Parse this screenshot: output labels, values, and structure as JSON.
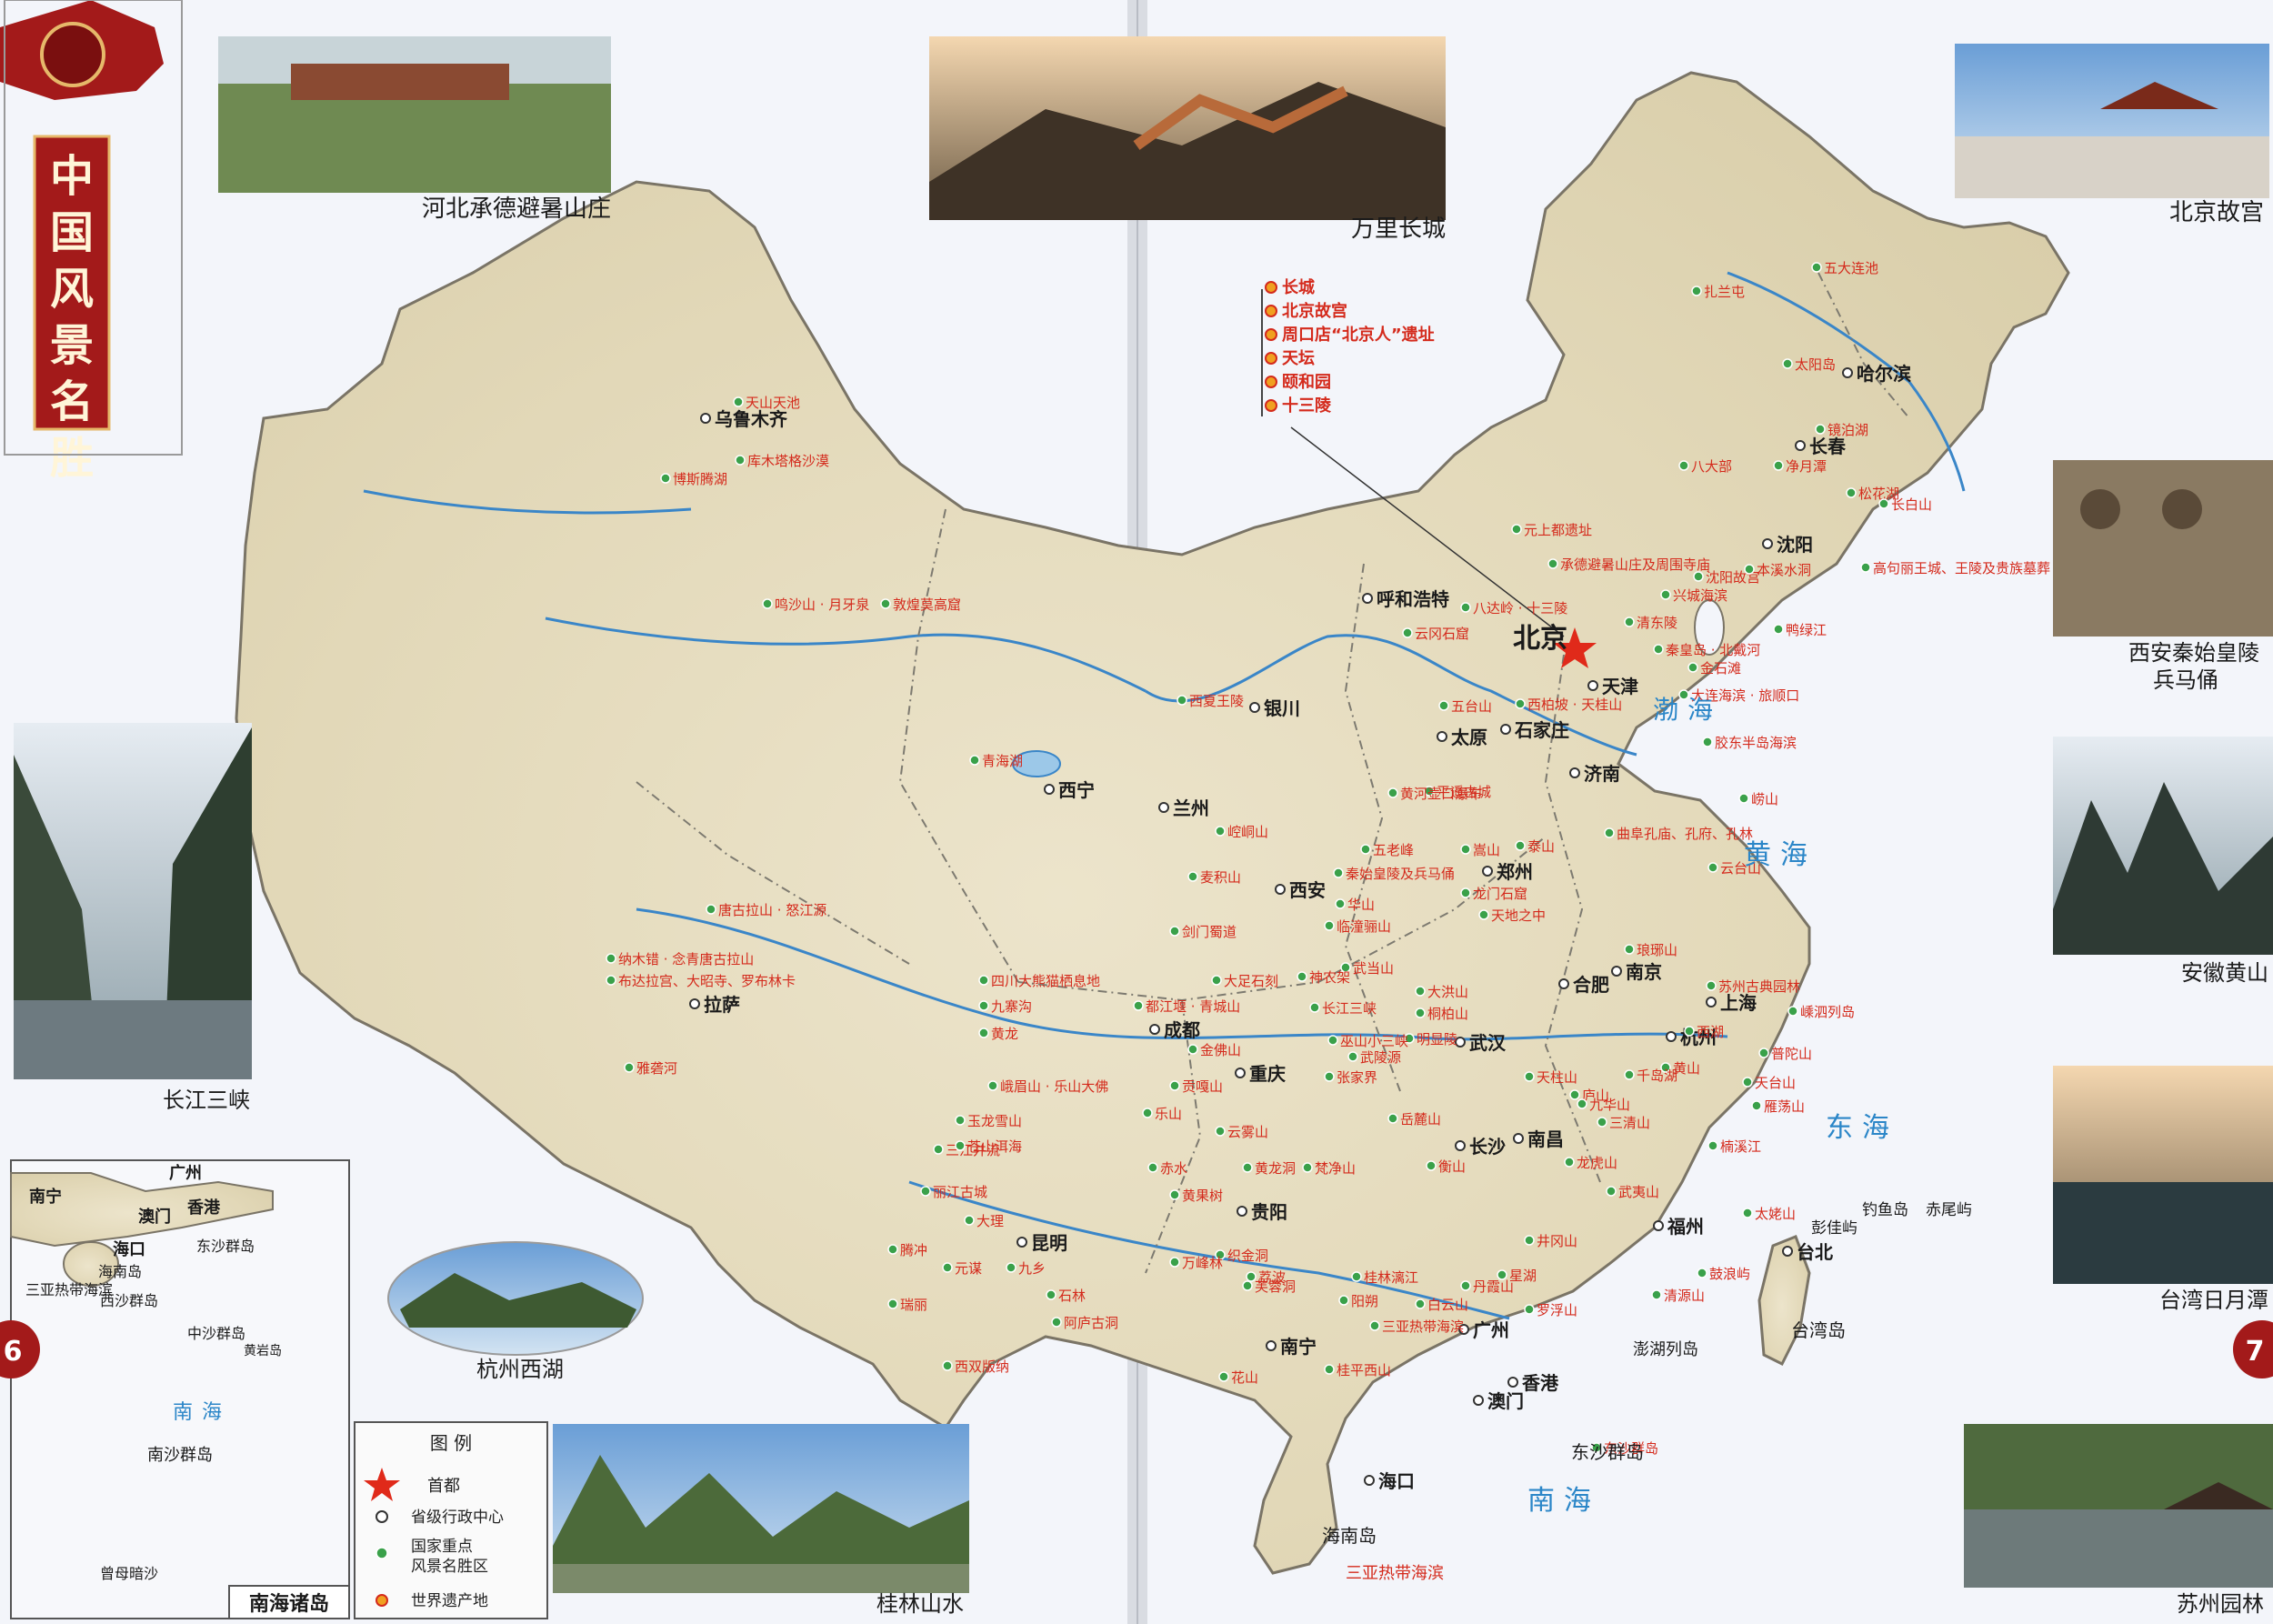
{
  "title": "中国风景名胜",
  "capital_name": "北京",
  "photos": {
    "chengde": "河北承德避暑山庄",
    "great_wall": "万里长城",
    "forbidden_city": "北京故宫",
    "terracotta_1": "西安秦始皇陵",
    "terracotta_2": "兵马俑",
    "huangshan": "安徽黄山",
    "sun_moon_lake": "台湾日月潭",
    "suzhou": "苏州园林",
    "guilin": "桂林山水",
    "hangzhou": "杭州西湖",
    "three_gorges": "长江三峡"
  },
  "beijing_list": [
    "长城",
    "北京故宫",
    "周口店“北京人”遗址",
    "天坛",
    "颐和园",
    "十三陵"
  ],
  "cities": {
    "urumqi": "乌鲁木齐",
    "lhasa": "拉萨",
    "xining": "西宁",
    "lanzhou": "兰州",
    "yinchuan": "银川",
    "hohhot": "呼和浩特",
    "harbin": "哈尔滨",
    "changchun": "长春",
    "shenyang": "沈阳",
    "tianjin": "天津",
    "shijiazhuang": "石家庄",
    "taiyuan": "太原",
    "jinan": "济南",
    "zhengzhou": "郑州",
    "xian": "西安",
    "chengdu": "成都",
    "chongqing": "重庆",
    "wuhan": "武汉",
    "hefei": "合肥",
    "nanjing": "南京",
    "shanghai": "上海",
    "hangzhou": "杭州",
    "nanchang": "南昌",
    "changsha": "长沙",
    "guiyang": "贵阳",
    "kunming": "昆明",
    "nanning": "南宁",
    "guangzhou": "广州",
    "fuzhou": "福州",
    "taipei": "台北",
    "macau": "澳门",
    "hongkong": "香港",
    "haikou": "海口"
  },
  "scenic": [
    "天山天池",
    "博斯腾湖",
    "库木塔格沙漠",
    "鸣沙山 · 月牙泉",
    "敦煌莫高窟",
    "青海湖",
    "唐古拉山 · 怒江源",
    "纳木错 · 念青唐古拉山",
    "布达拉宫、大昭寺、罗布林卡",
    "雅砻河",
    "四川大熊猫栖息地",
    "九寨沟",
    "黄龙",
    "峨眉山 · 乐山大佛",
    "都江堰 · 青城山",
    "三江并流",
    "丽江古城",
    "大理",
    "石林",
    "西双版纳",
    "五大连池",
    "扎兰屯",
    "太阳岛",
    "镜泊湖",
    "八大部",
    "净月潭",
    "松花湖",
    "元上都遗址",
    "承德避暑山庄及周围寺庙",
    "沈阳故宫",
    "兴城海滨",
    "本溪水洞",
    "高句丽王城、王陵及贵族墓葬",
    "鸭绿江",
    "八达岭 · 十三陵",
    "云冈石窟",
    "秦皇岛 · 北戴河",
    "金石滩",
    "大连海滨 · 旅顺口",
    "清东陵",
    "五台山",
    "西柏坡 · 天桂山",
    "胶东半岛海滨",
    "崂山",
    "泰山",
    "曲阜孔庙、孔府、孔林",
    "云台山",
    "平遥古城",
    "嵩山",
    "龙门石窟",
    "天地之中",
    "黄河壶口瀑布",
    "秦始皇陵及兵马俑",
    "华山",
    "临潼骊山",
    "麦积山",
    "崆峒山",
    "西夏王陵",
    "五老峰",
    "武当山",
    "神农架",
    "大洪山",
    "桐柏山",
    "明显陵",
    "长江三峡",
    "黄山",
    "西湖",
    "普陀山",
    "雁荡山",
    "楠溪江",
    "武夷山",
    "庐山",
    "三清山",
    "龙虎山",
    "井冈山",
    "衡山",
    "岳麓山",
    "张家界",
    "武陵源",
    "桂林漓江",
    "阳朔",
    "鼓浪屿",
    "白云山",
    "丹霞山",
    "三亚热带海滨",
    "苏州古典园林",
    "东沙群岛",
    "嵊泗列岛",
    "太姥山",
    "清源山",
    "金佛山",
    "天柱山",
    "九华山",
    "琅琊山",
    "黄果树",
    "织金洞",
    "荔波",
    "万峰林",
    "赤水",
    "梵净山",
    "巫山小三峡",
    "长白山",
    "云雾山",
    "黄龙洞",
    "芙蓉洞",
    "剑门蜀道",
    "大足石刻",
    "贡嘎山",
    "乐山",
    "天台山",
    "千岛湖",
    "苍山洱海",
    "玉龙雪山",
    "元谋",
    "腾冲",
    "瑞丽",
    "九乡",
    "阿庐古洞",
    "桂平西山",
    "花山",
    "星湖",
    "罗浮山"
  ],
  "seas": {
    "bohai": "渤海",
    "yellow": "黄海",
    "east": "东海",
    "south": "南海",
    "south_inset": "南海"
  },
  "islands": {
    "hainan": "海南岛",
    "taiwan": "台湾岛",
    "penghu": "澎湖列岛",
    "diaoyu": "钓鱼岛",
    "chiwei": "赤尾屿",
    "pengjia": "彭佳屿",
    "dongsha": "东沙群岛",
    "xisha": "西沙群岛",
    "zhongsha": "中沙群岛",
    "huangyan": "黄岩岛",
    "nansha": "南沙群岛",
    "zengmu": "曾母暗沙",
    "inset_title": "南海诸岛",
    "sanya": "三亚热带海滨"
  },
  "legend": {
    "title": "图 例",
    "capital": "首都",
    "provincial": "省级行政中心",
    "scenic_1": "国家重点",
    "scenic_2": "风景名胜区",
    "heritage": "世界遗产地"
  },
  "page_numbers": {
    "left": "6",
    "right": "7"
  },
  "colors": {
    "land": "#e9e1c6",
    "sea": "#f3f5fa",
    "border": "#6a6a6a",
    "river": "#3a86c8",
    "scenic_text": "#d42a1c",
    "scenic_dot": "#3aa14a",
    "title_bg": "#a31a1a"
  }
}
